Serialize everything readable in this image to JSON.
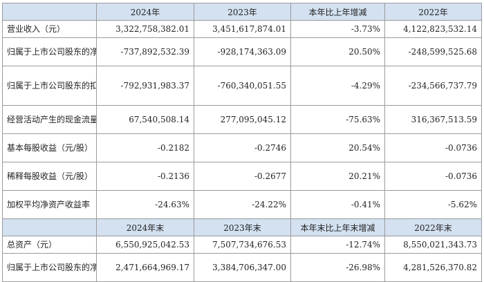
{
  "header1": [
    "",
    "2024年",
    "2023年",
    "本年比上年增减",
    "2022年"
  ],
  "rows1": [
    {
      "label": "营业收入（元）",
      "values": [
        "3,322,758,382.01",
        "3,451,617,874.01",
        "-3.73%",
        "4,122,823,532.14"
      ]
    },
    {
      "label": "归属于上市公司股东的净利润（元）",
      "values": [
        "-737,892,532.39",
        "-928,174,363.09",
        "20.50%",
        "-248,599,525.68"
      ]
    },
    {
      "label": "归属于上市公司股东的扣除非经常性损益的净利润（元）",
      "values": [
        "-792,931,983.37",
        "-760,340,051.55",
        "-4.29%",
        "-234,566,737.79"
      ]
    },
    {
      "label": "经营活动产生的现金流量净额（元）",
      "values": [
        "67,540,508.14",
        "277,095,045.12",
        "-75.63%",
        "316,367,513.59"
      ]
    },
    {
      "label": "基本每股收益（元/股）",
      "values": [
        "-0.2182",
        "-0.2746",
        "20.54%",
        "-0.0736"
      ]
    },
    {
      "label": "稀释每股收益（元/股）",
      "values": [
        "-0.2136",
        "-0.2677",
        "20.21%",
        "-0.0736"
      ]
    },
    {
      "label": "加权平均净资产收益率",
      "values": [
        "-24.63%",
        "-24.22%",
        "-0.41%",
        "-5.62%"
      ]
    }
  ],
  "header2": [
    "",
    "2024年末",
    "2023年末",
    "本年末比上年末增减",
    "2022年末"
  ],
  "rows2": [
    {
      "label": "总资产（元）",
      "values": [
        "6,550,925,042.53",
        "7,507,734,676.53",
        "-12.74%",
        "8,550,021,343.73"
      ]
    },
    {
      "label": "归属于上市公司股东的净资产（元）",
      "values": [
        "2,471,664,969.17",
        "3,384,706,347.00",
        "-26.98%",
        "4,281,526,370.82"
      ]
    }
  ]
}
